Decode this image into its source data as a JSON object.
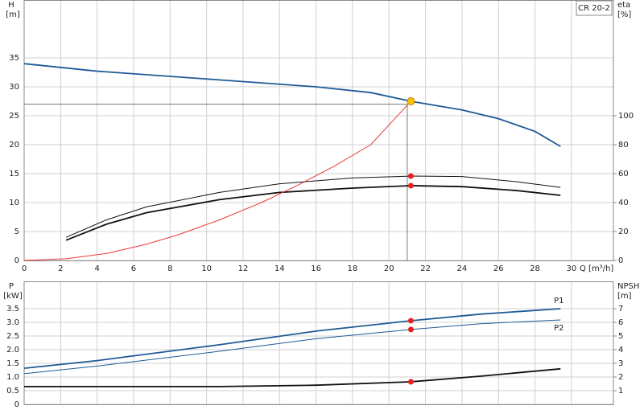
{
  "chart_data": [
    {
      "type": "line",
      "y_label": "H",
      "y_unit": "[m]",
      "y2_label": "eta",
      "y2_unit": "[%]",
      "x_label": "Q [m³/h]",
      "badge": "CR 20-2",
      "xlim": [
        0,
        32.3
      ],
      "xticks": [
        0,
        2,
        4,
        6,
        8,
        10,
        12,
        14,
        16,
        18,
        20,
        22,
        24,
        26,
        28,
        30
      ],
      "ylim": [
        0,
        45
      ],
      "yticks": [
        0,
        5,
        10,
        15,
        20,
        25,
        30,
        35
      ],
      "y2lim": [
        0,
        180
      ],
      "y2ticks": [
        0,
        20,
        40,
        60,
        80,
        100
      ],
      "grid": true,
      "series": [
        {
          "color": "#1f5a96",
          "width": 1.8,
          "x": [
            0,
            4,
            10.7,
            16,
            19,
            21.2,
            24,
            26,
            28,
            29.4
          ],
          "values": [
            34,
            32.7,
            31.2,
            30,
            29,
            27.5,
            26,
            24.5,
            22.3,
            19.7
          ]
        },
        {
          "color": "#111",
          "width": 1,
          "axis": "y2",
          "x": [
            2.3,
            4.5,
            6.7,
            10.7,
            14,
            18,
            21.2,
            24,
            27,
            29.4
          ],
          "values": [
            16,
            28,
            37,
            47,
            53,
            57,
            58.3,
            58,
            54.4,
            50.5
          ]
        },
        {
          "color": "#111",
          "width": 1.8,
          "axis": "y2",
          "x": [
            2.3,
            4.5,
            6.7,
            10.7,
            14,
            18,
            21.2,
            24,
            27,
            29.4
          ],
          "values": [
            14,
            25,
            33,
            42,
            47,
            50,
            51.7,
            51,
            48.3,
            45
          ]
        },
        {
          "color": "#e83a3a",
          "width": 1,
          "x": [
            0,
            2.3,
            4.5,
            6.7,
            8.5,
            10.7,
            13,
            15,
            17,
            19,
            21.2
          ],
          "values": [
            0,
            0.3,
            1.2,
            2.8,
            4.5,
            7,
            10,
            13,
            16.3,
            20,
            27.5
          ]
        }
      ],
      "reference": {
        "x": 21,
        "y": 27
      },
      "markers": [
        {
          "x": 21.2,
          "y": 27.5,
          "color": "#f5c400"
        },
        {
          "x": 21.2,
          "y": 58.3,
          "color": "#e82020",
          "axis": "y2"
        },
        {
          "x": 21.2,
          "y": 51.7,
          "color": "#e82020",
          "axis": "y2"
        }
      ]
    },
    {
      "type": "line",
      "y_label": "P",
      "y_unit": "[kW]",
      "y2_label": "NPSH",
      "y2_unit": "[m]",
      "xlim": [
        0,
        32.3
      ],
      "ylim": [
        0,
        4.5
      ],
      "yticks": [
        0,
        0.5,
        {
          "value": 1,
          "label": "1.0"
        },
        1.5,
        {
          "value": 2,
          "label": "2.0"
        },
        2.5,
        {
          "value": 3,
          "label": "3.0"
        },
        3.5
      ],
      "y2lim": [
        0,
        9
      ],
      "y2ticks": [
        1,
        2,
        3,
        4,
        5,
        6,
        7
      ],
      "grid": true,
      "series": [
        {
          "name": "P1",
          "color": "#1f5a96",
          "width": 1.8,
          "x": [
            0,
            4,
            10.7,
            16,
            21.2,
            25,
            29.4
          ],
          "values": [
            1.32,
            1.6,
            2.18,
            2.68,
            3.06,
            3.3,
            3.5
          ]
        },
        {
          "name": "P2",
          "color": "#1f5a96",
          "width": 1,
          "x": [
            0,
            4,
            10.7,
            16,
            21.2,
            25,
            29.4
          ],
          "values": [
            1.12,
            1.4,
            1.94,
            2.4,
            2.74,
            2.95,
            3.09
          ]
        },
        {
          "color": "#111",
          "width": 1.8,
          "axis": "y2",
          "x": [
            0,
            10.7,
            16,
            21.2,
            25,
            29.4
          ],
          "values": [
            1.3,
            1.3,
            1.4,
            1.65,
            2.06,
            2.6
          ]
        }
      ],
      "markers": [
        {
          "x": 21.2,
          "y": 3.06,
          "color": "#e82020"
        },
        {
          "x": 21.2,
          "y": 2.74,
          "color": "#e82020"
        },
        {
          "x": 21.2,
          "y": 1.65,
          "color": "#e82020",
          "axis": "y2"
        }
      ]
    }
  ]
}
